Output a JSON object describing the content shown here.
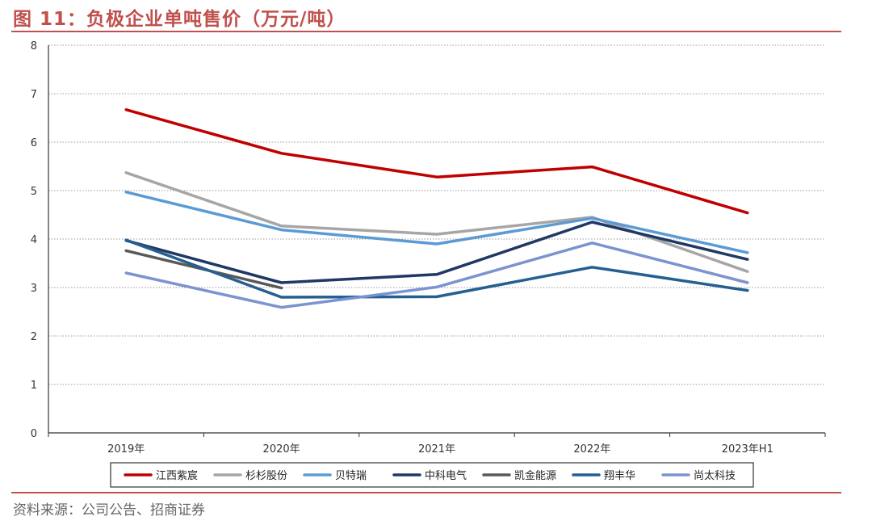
{
  "header": {
    "title": "图 11：负极企业单吨售价（万元/吨）"
  },
  "footer": {
    "source": "资料来源：公司公告、招商证券"
  },
  "colors": {
    "accent": "#c0504d"
  },
  "chart_data": {
    "type": "line",
    "title": "负极企业单吨售价（万元/吨）",
    "xlabel": "",
    "ylabel": "",
    "ylim": [
      0,
      8
    ],
    "yticks": [
      "0",
      "1",
      "2",
      "3",
      "4",
      "5",
      "6",
      "7",
      "8"
    ],
    "categories": [
      "2019年",
      "2020年",
      "2021年",
      "2022年",
      "2023年H1"
    ],
    "grid": true,
    "legend_position": "bottom",
    "series": [
      {
        "name": "江西紫宸",
        "color": "#c00000",
        "values": [
          6.67,
          5.77,
          5.28,
          5.49,
          4.54
        ]
      },
      {
        "name": "杉杉股份",
        "color": "#a6a6a6",
        "values": [
          5.37,
          4.27,
          4.1,
          4.45,
          3.33
        ]
      },
      {
        "name": "贝特瑞",
        "color": "#5b9bd5",
        "values": [
          4.97,
          4.19,
          3.9,
          4.43,
          3.72
        ]
      },
      {
        "name": "中科电气",
        "color": "#203864",
        "values": [
          3.97,
          3.1,
          3.27,
          4.35,
          3.58
        ]
      },
      {
        "name": "凯金能源",
        "color": "#595959",
        "values": [
          3.76,
          2.99,
          null,
          null,
          null
        ]
      },
      {
        "name": "翔丰华",
        "color": "#255e91",
        "values": [
          3.98,
          2.8,
          2.81,
          3.42,
          2.94
        ]
      },
      {
        "name": "尚太科技",
        "color": "#7b93cf",
        "values": [
          3.3,
          2.59,
          3.01,
          3.92,
          3.1
        ]
      }
    ]
  }
}
